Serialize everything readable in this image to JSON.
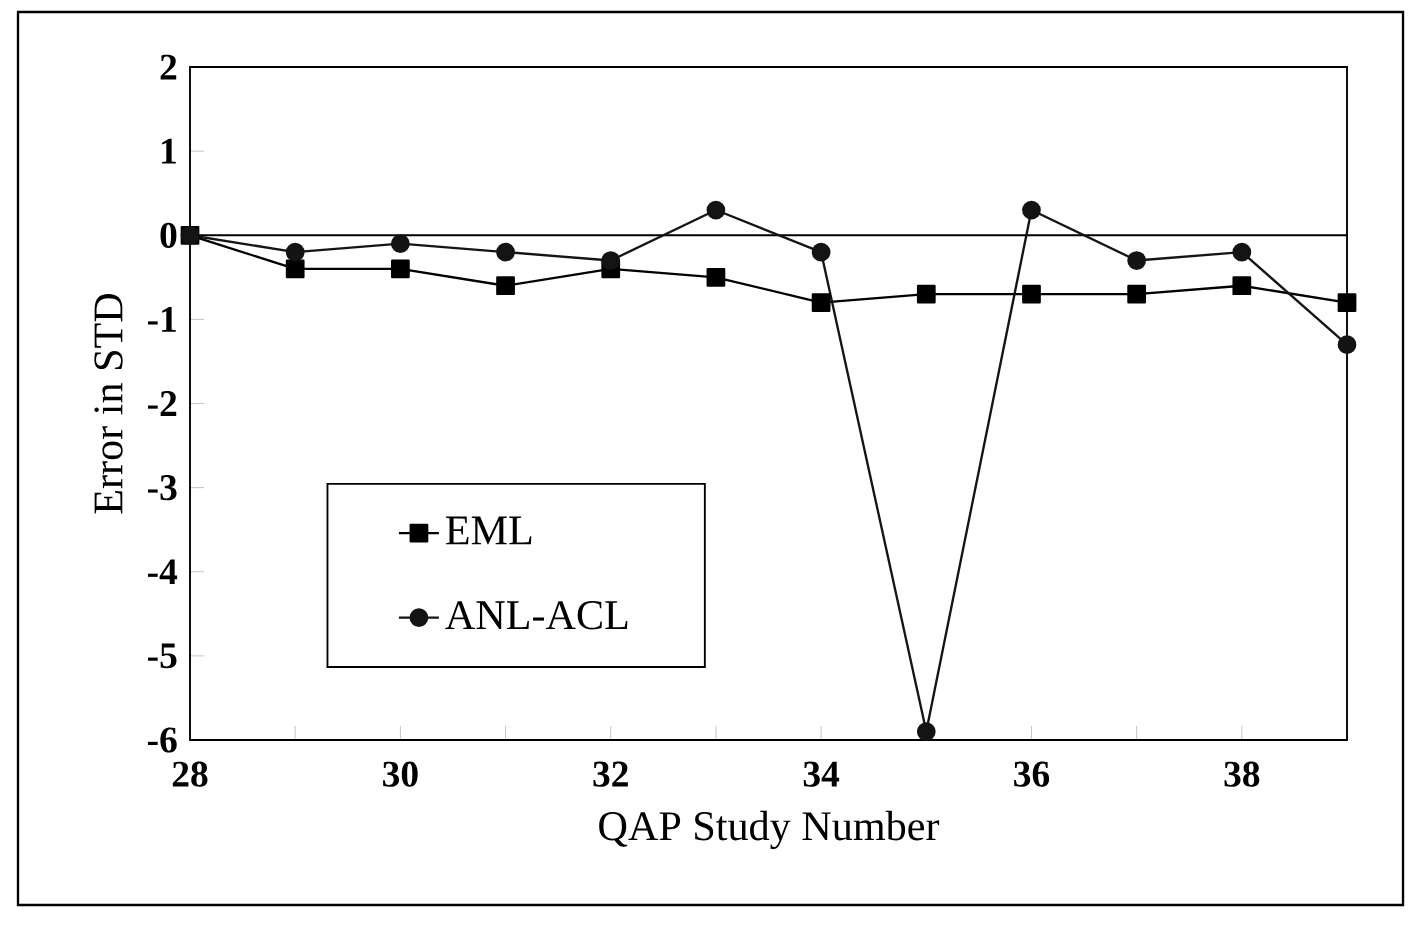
{
  "chart_data": {
    "type": "line",
    "xlabel": "QAP Study Number",
    "ylabel": "Error in STD",
    "x": [
      28,
      29,
      30,
      31,
      32,
      33,
      34,
      35,
      36,
      37,
      38,
      39
    ],
    "series": [
      {
        "name": "EML",
        "color": "#000000",
        "marker": "square",
        "values": [
          0,
          -0.4,
          -0.4,
          -0.6,
          -0.4,
          -0.5,
          -0.8,
          -0.7,
          -0.7,
          -0.7,
          -0.6,
          -0.8
        ]
      },
      {
        "name": "ANL-ACL",
        "color": "#141414",
        "marker": "circle",
        "values": [
          0,
          -0.2,
          -0.1,
          -0.2,
          -0.3,
          0.3,
          -0.2,
          -5.9,
          0.3,
          -0.3,
          -0.2,
          -1.3
        ]
      }
    ],
    "xlim": [
      28,
      39
    ],
    "xticks": [
      28,
      {
        "value": 29,
        "label": null
      },
      30,
      {
        "value": 31,
        "label": null
      },
      32,
      {
        "value": 33,
        "label": null
      },
      34,
      {
        "value": 35,
        "label": null
      },
      36,
      {
        "value": 37,
        "label": null
      },
      38,
      {
        "value": 39,
        "label": null
      }
    ],
    "ylim": [
      -6,
      2
    ],
    "yticks": [
      -6,
      -5,
      -4,
      -3,
      -2,
      -1,
      0,
      1,
      2
    ],
    "ref_lines": [
      {
        "axis": "y",
        "value": 0,
        "color": "#000000"
      }
    ],
    "legend": "bottom left",
    "grid": false,
    "line_style": "solid"
  }
}
